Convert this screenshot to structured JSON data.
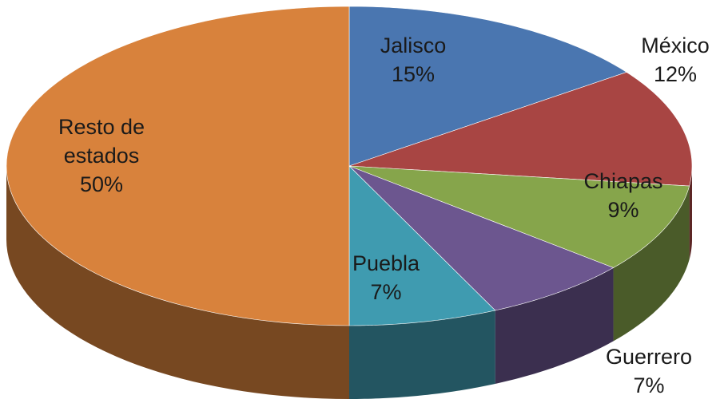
{
  "chart_data": {
    "type": "pie",
    "categories": [
      "Jalisco",
      "México",
      "Chiapas",
      "Guerrero",
      "Puebla",
      "Resto de estados"
    ],
    "values": [
      15,
      12,
      9,
      7,
      7,
      50
    ],
    "value_labels": [
      "15%",
      "12%",
      "9%",
      "7%",
      "7%",
      "50%"
    ],
    "colors": [
      "#4a76b0",
      "#a84543",
      "#86a54b",
      "#6c568f",
      "#3f9bb0",
      "#d8823c"
    ]
  }
}
